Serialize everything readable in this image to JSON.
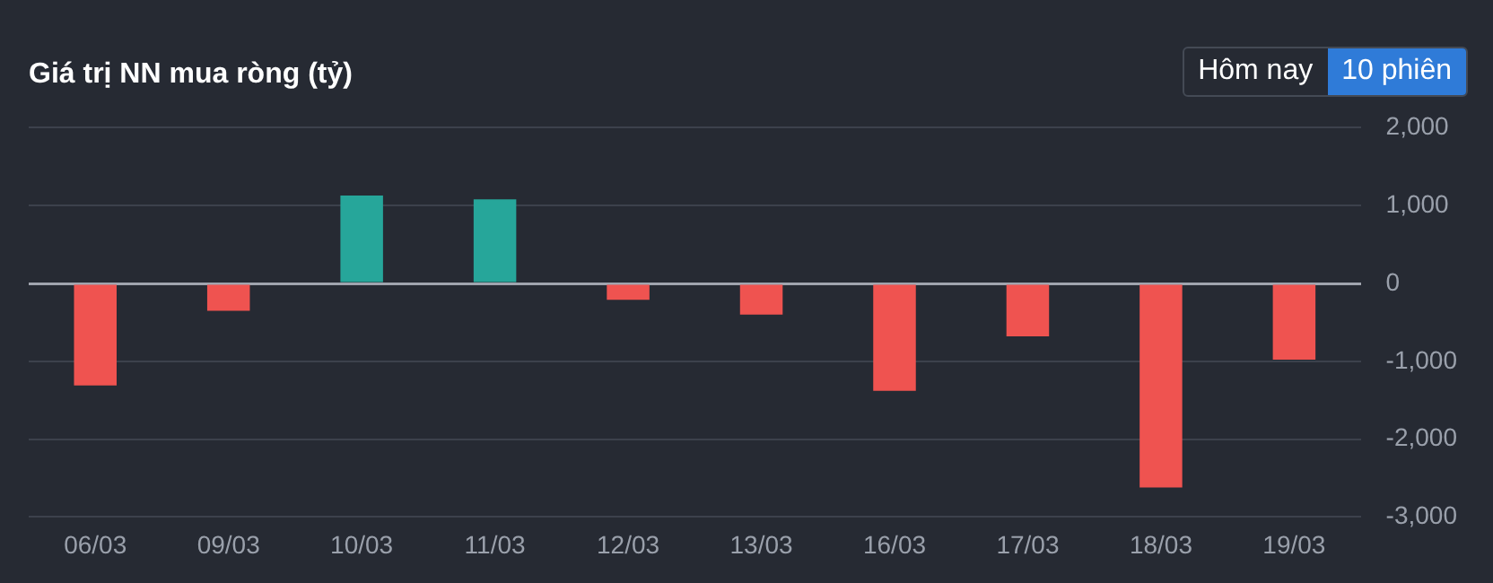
{
  "chart_data": {
    "type": "bar",
    "title": "Giá trị NN mua ròng (tỷ)",
    "categories": [
      "06/03",
      "09/03",
      "10/03",
      "11/03",
      "12/03",
      "13/03",
      "16/03",
      "17/03",
      "18/03",
      "19/03"
    ],
    "values": [
      -1310,
      -350,
      1130,
      1080,
      -210,
      -400,
      -1380,
      -680,
      -2620,
      -980
    ],
    "colors": [
      "#ef5350",
      "#ef5350",
      "#26a69a",
      "#26a69a",
      "#ef5350",
      "#ef5350",
      "#ef5350",
      "#ef5350",
      "#ef5350",
      "#ef5350"
    ],
    "ylim": [
      -3000,
      2000
    ],
    "yticks": [
      {
        "value": -3000,
        "label": "-3,000"
      },
      {
        "value": -2000,
        "label": "-2,000"
      },
      {
        "value": -1000,
        "label": "-1,000"
      },
      0,
      {
        "value": 1000,
        "label": "1,000"
      },
      {
        "value": 2000,
        "label": "2,000"
      }
    ],
    "grid": "y",
    "legend": false,
    "annotations": [
      "Hôm nay",
      "10 phiên"
    ]
  }
}
